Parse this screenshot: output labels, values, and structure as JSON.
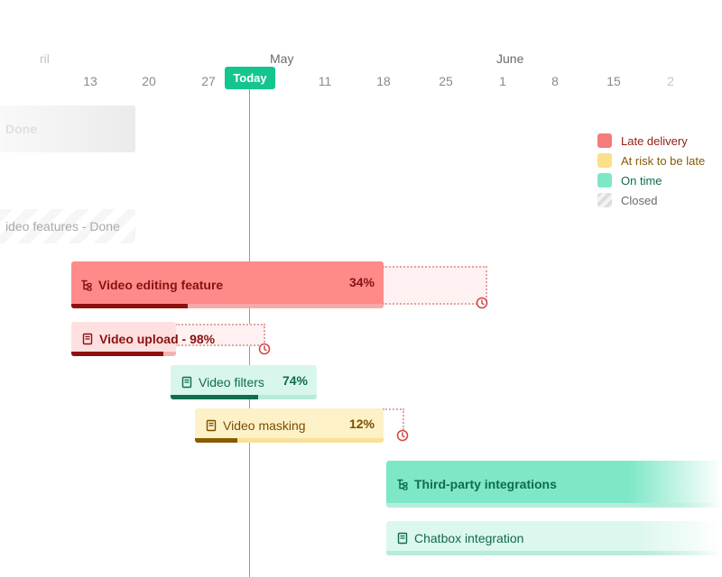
{
  "timeline": {
    "months": [
      {
        "label": "ril",
        "faded": true
      },
      {
        "label": "May",
        "faded": false
      },
      {
        "label": "June",
        "faded": false
      }
    ],
    "ticks": [
      "13",
      "20",
      "27",
      "4",
      "11",
      "18",
      "25",
      "1",
      "8",
      "15",
      "2"
    ],
    "today_label": "Today"
  },
  "closed_bars": [
    {
      "label": "Done"
    },
    {
      "label": "ideo features - Done"
    }
  ],
  "bars": [
    {
      "label": "Video editing feature",
      "percent": "34%",
      "progress": 0.34,
      "status": "late",
      "kind": "epic",
      "has_delay": true
    },
    {
      "label": "Video upload - 98%",
      "percent": "",
      "progress": 0.98,
      "status": "late",
      "kind": "story",
      "has_delay": true
    },
    {
      "label": "Video filters",
      "percent": "74%",
      "progress": 0.74,
      "status": "on_time",
      "kind": "story",
      "has_delay": false
    },
    {
      "label": "Video masking",
      "percent": "12%",
      "progress": 0.12,
      "status": "at_risk",
      "kind": "story",
      "has_delay": true
    },
    {
      "label": "Third-party integrations",
      "percent": "",
      "status": "on_time",
      "kind": "epic",
      "has_delay": false
    },
    {
      "label": "Chatbox integration",
      "percent": "",
      "status": "on_time",
      "kind": "story",
      "has_delay": false
    }
  ],
  "legend": [
    {
      "label": "Late delivery",
      "color": "#f47c7c",
      "text_color": "#8f1d14"
    },
    {
      "label": "At risk to be late",
      "color": "#fbdf8a",
      "text_color": "#8a5a00"
    },
    {
      "label": "On time",
      "color": "#7ee7c8",
      "text_color": "#0f6b4e"
    },
    {
      "label": "Closed",
      "color": "#e4e4e4",
      "text_color": "#6b6b6b"
    }
  ],
  "colors": {
    "late_bar": "#ff8a8a",
    "late_text": "#8a1111",
    "late_progress": "#8f0f0f",
    "at_risk_bar": "#fdf1c8",
    "at_risk_text": "#7a4e00",
    "at_risk_progress": "#8a5a00",
    "on_time_bar": "#d9f6ec",
    "on_time_text": "#0f6b4e",
    "on_time_progress": "#0e6e4d",
    "today": "#13c58f"
  }
}
